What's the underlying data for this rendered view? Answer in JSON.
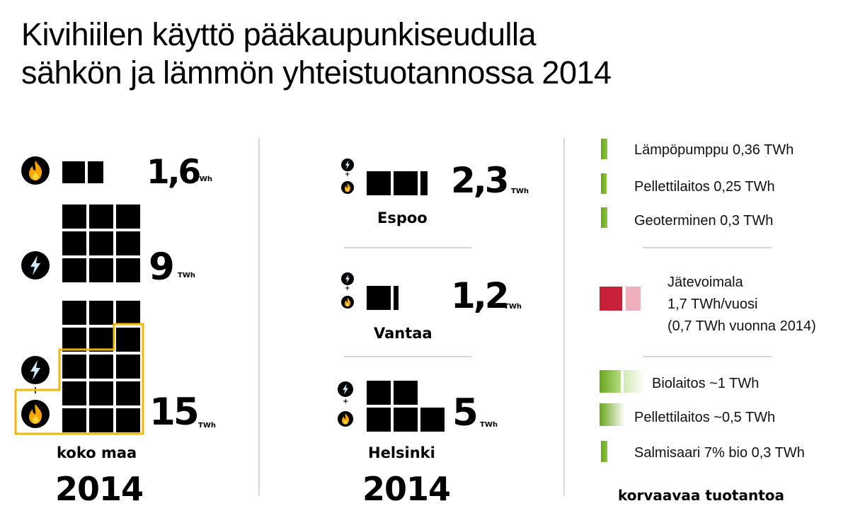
{
  "title": {
    "line1": "Kivihiilen käyttö pääkaupunkiseudulla",
    "line2": "sähkön ja lämmön yhteistuotannossa 2014"
  },
  "colors": {
    "black": "#000000",
    "highlight_outline": "#f2b705",
    "icon_bg": "#000000",
    "flame_outer": "#f7a600",
    "flame_inner": "#ffd83a",
    "bolt": "#cfe9f7",
    "green": "#8cc63f",
    "green_dark": "#6aa51c",
    "red": "#c8213a",
    "pink": "#eeb0bc",
    "divider": "#d6d6d6"
  },
  "chart_data": {
    "type": "table",
    "unit": "TWh",
    "national": [
      {
        "key": "heat",
        "icon": "flame-icon",
        "value": "1,6",
        "unit": "TWh"
      },
      {
        "key": "electricity",
        "icon": "bolt-icon",
        "value": "9",
        "unit": "TWh"
      },
      {
        "key": "chp",
        "icon": "bolt-plus-flame-icon",
        "value": "15",
        "unit": "TWh"
      }
    ],
    "national_label": "koko maa",
    "national_year": "2014",
    "cities": [
      {
        "name": "Espoo",
        "value": "2,3",
        "unit": "TWh"
      },
      {
        "name": "Vantaa",
        "value": "1,2",
        "unit": "TWh"
      },
      {
        "name": "Helsinki",
        "value": "5",
        "unit": "TWh"
      }
    ],
    "cities_year": "2014",
    "legend": {
      "heat_alternatives": [
        {
          "label": "Lämpöpumppu 0,36 TWh",
          "value": 0.36
        },
        {
          "label": "Pellettilaitos 0,25 TWh",
          "value": 0.25
        },
        {
          "label": "Geoterminen 0,3 TWh",
          "value": 0.3
        }
      ],
      "waste_plant": {
        "line1": "Jätevoimala",
        "line2": "1,7 TWh/vuosi",
        "line3": "(0,7 TWh vuonna 2014)"
      },
      "chp_alternatives": [
        {
          "label": "Biolaitos ~1 TWh",
          "value": 1.0
        },
        {
          "label": "Pellettilaitos ~0,5 TWh",
          "value": 0.5
        },
        {
          "label": "Salmisaari 7% bio 0,3 TWh",
          "value": 0.3
        }
      ],
      "footer": "korvaavaa tuotantoa"
    }
  }
}
